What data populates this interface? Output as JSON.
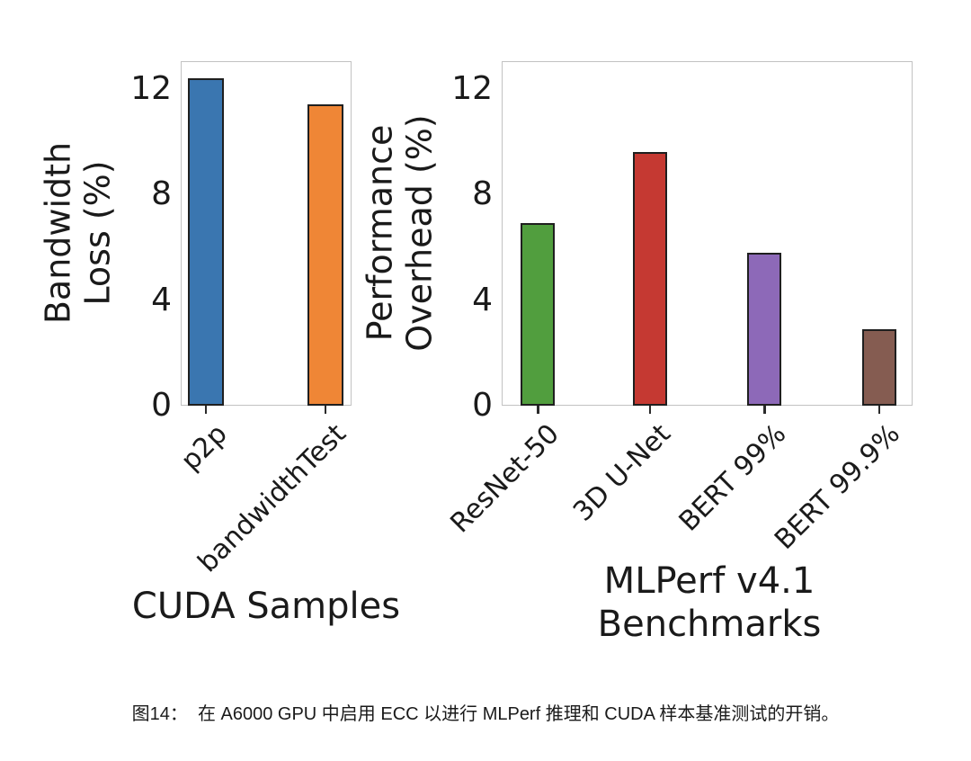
{
  "figure": {
    "caption": "图14：  在 A6000 GPU 中启用 ECC 以进行 MLPerf 推理和 CUDA 样本基准测试的开销。"
  },
  "chart_data": [
    {
      "type": "bar",
      "title": "",
      "xlabel": "CUDA Samples",
      "ylabel": "Bandwidth\nLoss (%)",
      "categories": [
        "p2p",
        "bandwidthTest"
      ],
      "values": [
        12.4,
        11.4
      ],
      "bar_colors": [
        "#3A76B0",
        "#EF8636"
      ],
      "yticks": [
        0,
        4,
        8,
        12
      ],
      "ylim": [
        0,
        13.05
      ],
      "grid": "horizontal",
      "legend_position": "none"
    },
    {
      "type": "bar",
      "title": "",
      "xlabel": "MLPerf v4.1\nBenchmarks",
      "ylabel": "Performance\nOverhead (%)",
      "categories": [
        "ResNet-50",
        "3D U-Net",
        "BERT 99%",
        "BERT 99.9%"
      ],
      "values": [
        6.9,
        9.6,
        5.8,
        2.9
      ],
      "bar_colors": [
        "#519E3E",
        "#C53932",
        "#8D69B8",
        "#855C51"
      ],
      "yticks": [
        0,
        4,
        8,
        12
      ],
      "ylim": [
        0,
        13.05
      ],
      "grid": "horizontal",
      "legend_position": "none"
    }
  ],
  "style": {
    "bar_edge_color": "#1f1f1f",
    "grid_color": "#d8d8d8",
    "spine_color": "#c2c2c2",
    "text_color": "#1a1a1a",
    "background": "#ffffff"
  }
}
